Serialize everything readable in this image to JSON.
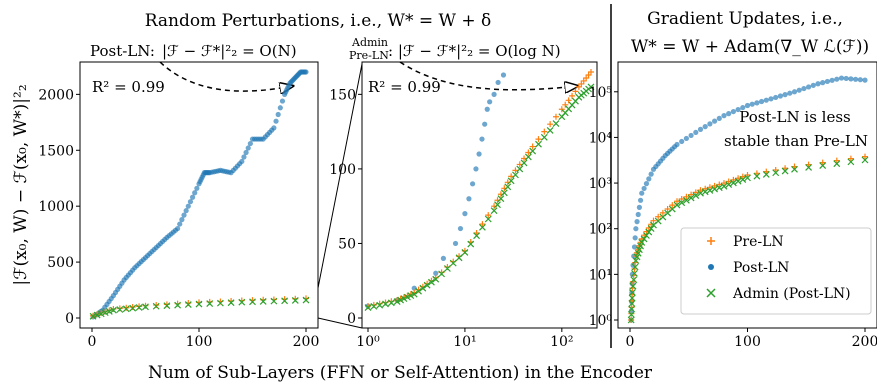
{
  "colors": {
    "pre_ln": "#ff7f0e",
    "post_ln": "#1f77b4",
    "admin": "#2ca02c"
  },
  "titles": {
    "left": "Random Perturbations, i.e., W* = W + δ",
    "right_line1": "Gradient Updates, i.e.,",
    "right_line2": "W* = W + Adam(∇_W ℒ(ℱ))"
  },
  "labels": {
    "ylabel": "|ℱ(x₀, W) − ℱ(x₀, W*)|²₂",
    "xlabel": "Num of Sub-Layers (FFN or Self-Attention) in the Encoder"
  },
  "annotations": {
    "postln_name": "Post-LN:",
    "postln_formula": "|ℱ − ℱ*|²₂ = O(N)",
    "admin_name_1": "Admin",
    "admin_name_2": "Pre-LN",
    "admin_formula": ": |ℱ − ℱ*|²₂ = O(log N)",
    "r2_left": "R² = 0.99",
    "r2_mid": "R² = 0.99",
    "stability_line1": "Post-LN is less",
    "stability_line2": "stable than Pre-LN"
  },
  "legend": [
    {
      "marker": "+",
      "label": "Pre-LN"
    },
    {
      "marker": "•",
      "label": "Post-LN"
    },
    {
      "marker": "×",
      "label": "Admin (Post-LN)"
    }
  ],
  "chart_data": [
    {
      "type": "scatter",
      "name": "panel-left",
      "xlim": [
        0,
        200
      ],
      "ylim": [
        0,
        2200
      ],
      "xticks": [
        "0",
        "100",
        "200"
      ],
      "yticks": [
        "0",
        "500",
        "1000",
        "1500",
        "2000"
      ],
      "series": [
        {
          "name": "Post-LN",
          "x": [
            1,
            10,
            20,
            30,
            40,
            50,
            60,
            70,
            80,
            90,
            100,
            105,
            110,
            120,
            130,
            140,
            150,
            160,
            170,
            180,
            185,
            190,
            195,
            200
          ],
          "y": [
            10,
            70,
            200,
            340,
            450,
            540,
            630,
            720,
            800,
            1000,
            1200,
            1300,
            1300,
            1320,
            1300,
            1400,
            1600,
            1600,
            1700,
            2000,
            2100,
            2150,
            2200,
            2200
          ]
        },
        {
          "name": "Pre-LN",
          "x": [
            1,
            20,
            50,
            100,
            150,
            200
          ],
          "y": [
            20,
            80,
            110,
            140,
            160,
            175
          ]
        },
        {
          "name": "Admin (Post-LN)",
          "x": [
            1,
            20,
            50,
            100,
            150,
            200
          ],
          "y": [
            15,
            70,
            100,
            125,
            145,
            160
          ]
        }
      ]
    },
    {
      "type": "scatter",
      "name": "panel-middle",
      "xscale": "log",
      "xlim": [
        1,
        200
      ],
      "ylim": [
        0,
        165
      ],
      "xticks": [
        "10⁰",
        "10¹",
        "10²"
      ],
      "yticks": [
        "0",
        "50",
        "100",
        "150"
      ],
      "series": [
        {
          "name": "Post-LN",
          "x": [
            1,
            2,
            3,
            5,
            6,
            8,
            9,
            10,
            11,
            12,
            13,
            14,
            15,
            16,
            17,
            18,
            20,
            22,
            25
          ],
          "y": [
            8,
            12,
            20,
            30,
            40,
            50,
            60,
            70,
            80,
            90,
            100,
            110,
            120,
            130,
            140,
            145,
            150,
            158,
            163
          ]
        },
        {
          "name": "Pre-LN",
          "x": [
            1,
            2,
            3,
            5,
            10,
            20,
            30,
            50,
            100,
            150,
            200
          ],
          "y": [
            8,
            12,
            17,
            27,
            45,
            75,
            95,
            115,
            140,
            155,
            165
          ]
        },
        {
          "name": "Admin (Post-LN)",
          "x": [
            1,
            2,
            3,
            5,
            10,
            20,
            30,
            50,
            100,
            150,
            200
          ],
          "y": [
            7,
            11,
            16,
            26,
            44,
            72,
            92,
            112,
            135,
            148,
            155
          ]
        }
      ]
    },
    {
      "type": "scatter",
      "name": "panel-right",
      "yscale": "log",
      "xlim": [
        0,
        200
      ],
      "ylim": [
        1,
        300000
      ],
      "xticks": [
        "0",
        "100",
        "200"
      ],
      "yticks": [
        "10⁰",
        "10¹",
        "10²",
        "10³",
        "10⁴",
        "10⁵"
      ],
      "series": [
        {
          "name": "Post-LN",
          "x": [
            1,
            2,
            5,
            10,
            20,
            30,
            40,
            60,
            80,
            100,
            120,
            140,
            160,
            180,
            200
          ],
          "y": [
            1,
            10,
            100,
            600,
            2000,
            4000,
            7000,
            15000,
            30000,
            50000,
            70000,
            100000,
            150000,
            200000,
            180000
          ]
        },
        {
          "name": "Pre-LN",
          "x": [
            1,
            2,
            5,
            10,
            20,
            40,
            60,
            80,
            100,
            140,
            200
          ],
          "y": [
            1,
            5,
            25,
            60,
            150,
            400,
            700,
            1000,
            1500,
            2300,
            3800
          ]
        },
        {
          "name": "Admin (Post-LN)",
          "x": [
            1,
            2,
            5,
            10,
            20,
            40,
            60,
            80,
            100,
            140,
            200
          ],
          "y": [
            1,
            4,
            20,
            50,
            120,
            330,
            600,
            850,
            1300,
            2000,
            3200
          ]
        }
      ]
    }
  ]
}
